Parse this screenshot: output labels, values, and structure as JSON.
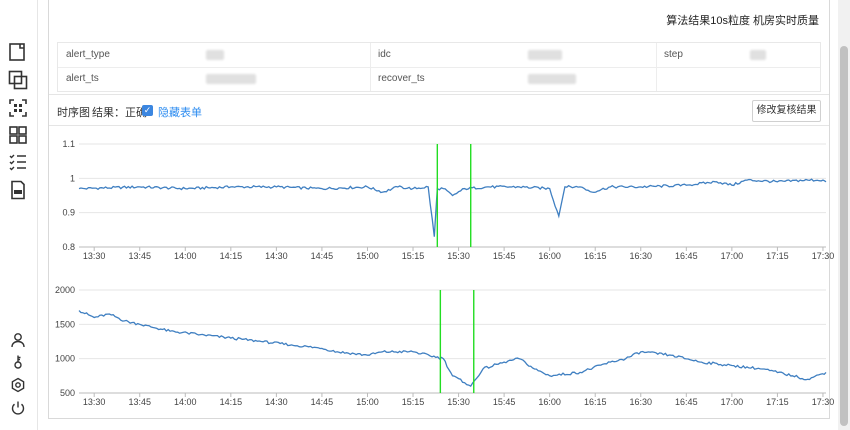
{
  "header": {
    "title": "算法结果10s粒度 机房实时质量"
  },
  "info": {
    "fields": [
      {
        "key": "alert_type"
      },
      {
        "key": "idc"
      },
      {
        "key": "step"
      },
      {
        "key": "alert_ts"
      },
      {
        "key": "recover_ts"
      }
    ]
  },
  "toolbar": {
    "timeseries_label": "时序图",
    "result_label": "结果：正确",
    "hide_form_link": "隐藏表单",
    "modify_button": "修改复核结果"
  },
  "colors": {
    "line": "#3f7fc1",
    "marker": "#22dd22",
    "link": "#2d8cf0"
  },
  "chart_data": [
    {
      "type": "line",
      "x_ticks": [
        "13:30",
        "13:45",
        "14:00",
        "14:15",
        "14:30",
        "14:45",
        "15:00",
        "15:15",
        "15:30",
        "15:45",
        "16:00",
        "16:15",
        "16:30",
        "16:45",
        "17:00",
        "17:15",
        "17:30"
      ],
      "y_ticks": [
        "0.8",
        "0.9",
        "1",
        "1.1"
      ],
      "ylim": [
        0.8,
        1.1
      ],
      "grid": "horizontal",
      "x": [
        "13:25",
        "13:45",
        "14:00",
        "14:15",
        "14:30",
        "14:45",
        "15:00",
        "15:05",
        "15:10",
        "15:15",
        "15:20",
        "15:22",
        "15:23",
        "15:25",
        "15:28",
        "15:32",
        "15:40",
        "15:50",
        "16:00",
        "16:03",
        "16:05",
        "16:10",
        "16:14",
        "16:20",
        "16:30",
        "16:45",
        "16:55",
        "17:00",
        "17:05",
        "17:15",
        "17:25",
        "17:30",
        "17:31"
      ],
      "values": [
        0.97,
        0.975,
        0.97,
        0.975,
        0.975,
        0.97,
        0.975,
        0.96,
        0.975,
        0.97,
        0.975,
        0.83,
        0.97,
        0.97,
        0.95,
        0.97,
        0.975,
        0.975,
        0.97,
        0.89,
        0.975,
        0.975,
        0.96,
        0.975,
        0.975,
        0.98,
        0.99,
        0.98,
        0.995,
        0.99,
        0.995,
        0.995,
        0.99
      ],
      "markers": [
        "15:23",
        "15:34"
      ]
    },
    {
      "type": "line",
      "x_ticks": [
        "13:30",
        "13:45",
        "14:00",
        "14:15",
        "14:30",
        "14:45",
        "15:00",
        "15:15",
        "15:30",
        "15:45",
        "16:00",
        "16:15",
        "16:30",
        "16:45",
        "17:00",
        "17:15",
        "17:30"
      ],
      "y_ticks": [
        "500",
        "1000",
        "1500",
        "2000"
      ],
      "ylim": [
        500,
        2000
      ],
      "grid": "horizontal",
      "x": [
        "13:25",
        "13:30",
        "13:35",
        "13:40",
        "13:45",
        "13:55",
        "14:05",
        "14:15",
        "14:25",
        "14:35",
        "14:45",
        "14:50",
        "15:00",
        "15:05",
        "15:15",
        "15:25",
        "15:28",
        "15:32",
        "15:34",
        "15:38",
        "15:45",
        "15:50",
        "15:55",
        "16:00",
        "16:10",
        "16:20",
        "16:25",
        "16:30",
        "16:40",
        "16:50",
        "17:00",
        "17:10",
        "17:20",
        "17:25",
        "17:31"
      ],
      "values": [
        1700,
        1600,
        1650,
        1550,
        1500,
        1400,
        1350,
        1300,
        1250,
        1200,
        1150,
        1100,
        1050,
        1100,
        1100,
        1000,
        750,
        650,
        600,
        850,
        950,
        1000,
        850,
        750,
        800,
        950,
        1000,
        1100,
        1050,
        950,
        900,
        850,
        750,
        700,
        800
      ],
      "markers": [
        "15:24",
        "15:35"
      ]
    }
  ]
}
